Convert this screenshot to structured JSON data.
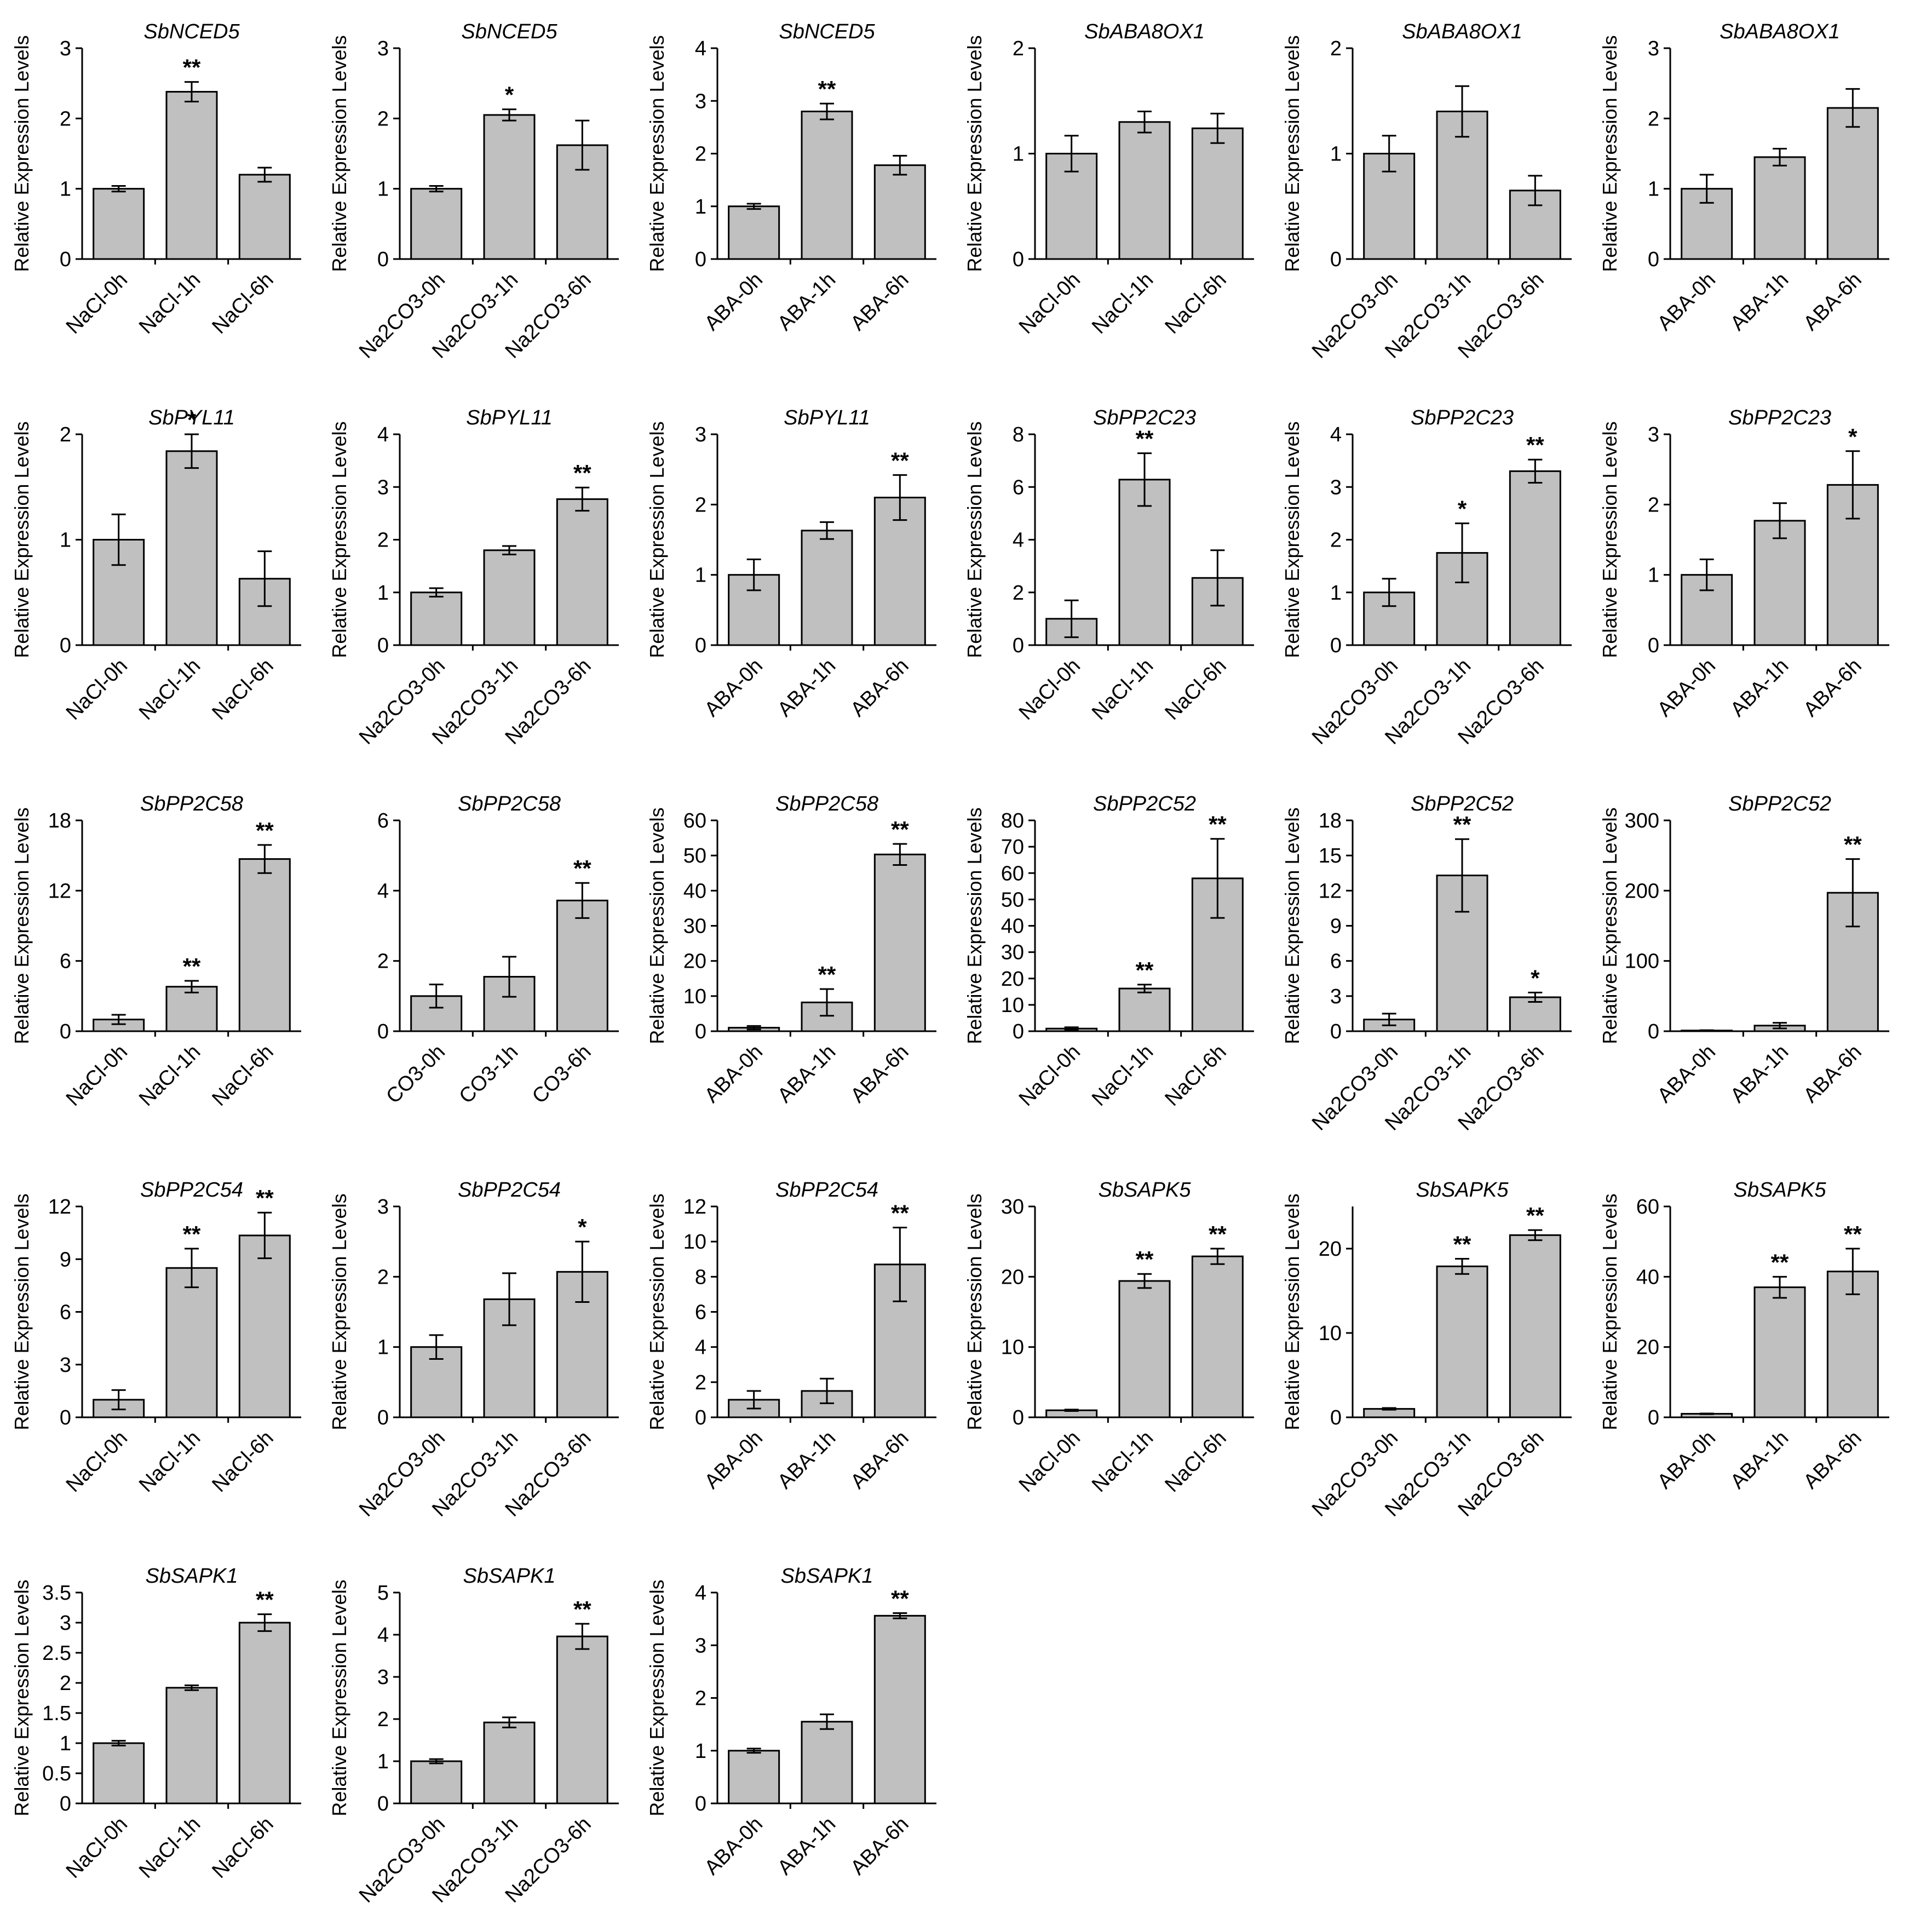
{
  "figure": {
    "ylabel": "Relative Expression Levels"
  },
  "chart_data": [
    {
      "type": "bar",
      "title": "SbNCED5",
      "ylabel": "Relative Expression Levels",
      "categories": [
        "NaCl-0h",
        "NaCl-1h",
        "NaCl-6h"
      ],
      "values": [
        1.0,
        2.38,
        1.2
      ],
      "errors": [
        0.04,
        0.14,
        0.1
      ],
      "significance": [
        "",
        "**",
        ""
      ],
      "ylim": [
        0,
        3
      ],
      "yticks": [
        "0",
        "1",
        "2",
        "3"
      ]
    },
    {
      "type": "bar",
      "title": "SbNCED5",
      "ylabel": "Relative Expression Levels",
      "categories": [
        "Na2CO3-0h",
        "Na2CO3-1h",
        "Na2CO3-6h"
      ],
      "values": [
        1.0,
        2.05,
        1.62
      ],
      "errors": [
        0.04,
        0.08,
        0.35
      ],
      "significance": [
        "",
        "*",
        ""
      ],
      "ylim": [
        0,
        3
      ],
      "yticks": [
        "0",
        "1",
        "2",
        "3"
      ]
    },
    {
      "type": "bar",
      "title": "SbNCED5",
      "ylabel": "Relative Expression Levels",
      "categories": [
        "ABA-0h",
        "ABA-1h",
        "ABA-6h"
      ],
      "values": [
        1.0,
        2.8,
        1.78
      ],
      "errors": [
        0.05,
        0.15,
        0.18
      ],
      "significance": [
        "",
        "**",
        ""
      ],
      "ylim": [
        0,
        4
      ],
      "yticks": [
        "0",
        "1",
        "2",
        "3",
        "4"
      ]
    },
    {
      "type": "bar",
      "title": "SbABA8OX1",
      "ylabel": "Relative Expression Levels",
      "categories": [
        "NaCl-0h",
        "NaCl-1h",
        "NaCl-6h"
      ],
      "values": [
        1.0,
        1.3,
        1.24
      ],
      "errors": [
        0.17,
        0.1,
        0.14
      ],
      "significance": [
        "",
        "",
        ""
      ],
      "ylim": [
        0,
        2
      ],
      "yticks": [
        "0",
        "1",
        "2"
      ]
    },
    {
      "type": "bar",
      "title": "SbABA8OX1",
      "ylabel": "Relative Expression Levels",
      "categories": [
        "Na2CO3-0h",
        "Na2CO3-1h",
        "Na2CO3-6h"
      ],
      "values": [
        1.0,
        1.4,
        0.65
      ],
      "errors": [
        0.17,
        0.24,
        0.14
      ],
      "significance": [
        "",
        "",
        ""
      ],
      "ylim": [
        0,
        2
      ],
      "yticks": [
        "0",
        "1",
        "2"
      ]
    },
    {
      "type": "bar",
      "title": "SbABA8OX1",
      "ylabel": "Relative Expression Levels",
      "categories": [
        "ABA-0h",
        "ABA-1h",
        "ABA-6h"
      ],
      "values": [
        1.0,
        1.45,
        2.15
      ],
      "errors": [
        0.2,
        0.12,
        0.27
      ],
      "significance": [
        "",
        "",
        ""
      ],
      "ylim": [
        0,
        3
      ],
      "yticks": [
        "0",
        "1",
        "2",
        "3"
      ]
    },
    {
      "type": "bar",
      "title": "SbPYL11",
      "ylabel": "Relative Expression Levels",
      "categories": [
        "NaCl-0h",
        "NaCl-1h",
        "NaCl-6h"
      ],
      "values": [
        1.0,
        1.84,
        0.63
      ],
      "errors": [
        0.24,
        0.16,
        0.26
      ],
      "significance": [
        "",
        "*",
        ""
      ],
      "ylim": [
        0,
        2
      ],
      "yticks": [
        "0",
        "1",
        "2"
      ]
    },
    {
      "type": "bar",
      "title": "SbPYL11",
      "ylabel": "Relative Expression Levels",
      "categories": [
        "Na2CO3-0h",
        "Na2CO3-1h",
        "Na2CO3-6h"
      ],
      "values": [
        1.0,
        1.8,
        2.77
      ],
      "errors": [
        0.08,
        0.08,
        0.22
      ],
      "significance": [
        "",
        "",
        "**"
      ],
      "ylim": [
        0,
        4
      ],
      "yticks": [
        "0",
        "1",
        "2",
        "3",
        "4"
      ]
    },
    {
      "type": "bar",
      "title": "SbPYL11",
      "ylabel": "Relative Expression Levels",
      "categories": [
        "ABA-0h",
        "ABA-1h",
        "ABA-6h"
      ],
      "values": [
        1.0,
        1.63,
        2.1
      ],
      "errors": [
        0.22,
        0.12,
        0.32
      ],
      "significance": [
        "",
        "",
        "**"
      ],
      "ylim": [
        0,
        3
      ],
      "yticks": [
        "0",
        "1",
        "2",
        "3"
      ]
    },
    {
      "type": "bar",
      "title": "SbPP2C23",
      "ylabel": "Relative Expression Levels",
      "categories": [
        "NaCl-0h",
        "NaCl-1h",
        "NaCl-6h"
      ],
      "values": [
        1.0,
        6.28,
        2.55
      ],
      "errors": [
        0.7,
        1.0,
        1.05
      ],
      "significance": [
        "",
        "**",
        ""
      ],
      "ylim": [
        0,
        8
      ],
      "yticks": [
        "0",
        "2",
        "4",
        "6",
        "8"
      ]
    },
    {
      "type": "bar",
      "title": "SbPP2C23",
      "ylabel": "Relative Expression Levels",
      "categories": [
        "Na2CO3-0h",
        "Na2CO3-1h",
        "Na2CO3-6h"
      ],
      "values": [
        1.0,
        1.75,
        3.3
      ],
      "errors": [
        0.26,
        0.56,
        0.22
      ],
      "significance": [
        "",
        "*",
        "**"
      ],
      "ylim": [
        0,
        4
      ],
      "yticks": [
        "0",
        "1",
        "2",
        "3",
        "4"
      ]
    },
    {
      "type": "bar",
      "title": "SbPP2C23",
      "ylabel": "Relative Expression Levels",
      "categories": [
        "ABA-0h",
        "ABA-1h",
        "ABA-6h"
      ],
      "values": [
        1.0,
        1.77,
        2.28
      ],
      "errors": [
        0.22,
        0.25,
        0.48
      ],
      "significance": [
        "",
        "",
        "*"
      ],
      "ylim": [
        0,
        3
      ],
      "yticks": [
        "0",
        "1",
        "2",
        "3"
      ]
    },
    {
      "type": "bar",
      "title": "SbPP2C58",
      "ylabel": "Relative Expression Levels",
      "categories": [
        "NaCl-0h",
        "NaCl-1h",
        "NaCl-6h"
      ],
      "values": [
        1.0,
        3.8,
        14.7
      ],
      "errors": [
        0.4,
        0.5,
        1.2
      ],
      "significance": [
        "",
        "**",
        "**"
      ],
      "ylim": [
        0,
        18
      ],
      "yticks": [
        "0",
        "6",
        "12",
        "18"
      ]
    },
    {
      "type": "bar",
      "title": "SbPP2C58",
      "ylabel": "",
      "categories": [
        "CO3-0h",
        "CO3-1h",
        "CO3-6h"
      ],
      "values": [
        1.0,
        1.55,
        3.72
      ],
      "errors": [
        0.33,
        0.57,
        0.5
      ],
      "significance": [
        "",
        "",
        "**"
      ],
      "ylim": [
        0,
        6
      ],
      "yticks": [
        "0",
        "2",
        "4",
        "6"
      ]
    },
    {
      "type": "bar",
      "title": "SbPP2C58",
      "ylabel": "Relative Expression Levels",
      "categories": [
        "ABA-0h",
        "ABA-1h",
        "ABA-6h"
      ],
      "values": [
        1.0,
        8.2,
        50.3
      ],
      "errors": [
        0.5,
        3.8,
        3.0
      ],
      "significance": [
        "",
        "**",
        "**"
      ],
      "ylim": [
        0,
        60
      ],
      "yticks": [
        "0",
        "10",
        "20",
        "30",
        "40",
        "50",
        "60"
      ]
    },
    {
      "type": "bar",
      "title": "SbPP2C52",
      "ylabel": "Relative Expression Levels",
      "categories": [
        "NaCl-0h",
        "NaCl-1h",
        "NaCl-6h"
      ],
      "values": [
        1.0,
        16.2,
        58.0
      ],
      "errors": [
        0.5,
        1.5,
        15.0
      ],
      "significance": [
        "",
        "**",
        "**"
      ],
      "ylim": [
        0,
        80
      ],
      "yticks": [
        "0",
        "10",
        "20",
        "30",
        "40",
        "50",
        "60",
        "70",
        "80"
      ]
    },
    {
      "type": "bar",
      "title": "SbPP2C52",
      "ylabel": "Relative Expression Levels",
      "categories": [
        "Na2CO3-0h",
        "Na2CO3-1h",
        "Na2CO3-6h"
      ],
      "values": [
        1.0,
        13.3,
        2.9
      ],
      "errors": [
        0.5,
        3.1,
        0.4
      ],
      "significance": [
        "",
        "**",
        "*"
      ],
      "ylim": [
        0,
        18
      ],
      "yticks": [
        "0",
        "3",
        "6",
        "9",
        "12",
        "15",
        "18"
      ]
    },
    {
      "type": "bar",
      "title": "SbPP2C52",
      "ylabel": "Relative Expression Levels",
      "categories": [
        "ABA-0h",
        "ABA-1h",
        "ABA-6h"
      ],
      "values": [
        1.0,
        8.0,
        197.0
      ],
      "errors": [
        0.5,
        4.0,
        48.0
      ],
      "significance": [
        "",
        "",
        "**"
      ],
      "ylim": [
        0,
        300
      ],
      "yticks": [
        "0",
        "100",
        "200",
        "300"
      ]
    },
    {
      "type": "bar",
      "title": "SbPP2C54",
      "ylabel": "Relative Expression Levels",
      "categories": [
        "NaCl-0h",
        "NaCl-1h",
        "NaCl-6h"
      ],
      "values": [
        1.0,
        8.5,
        10.35
      ],
      "errors": [
        0.55,
        1.1,
        1.3
      ],
      "significance": [
        "",
        "**",
        "**"
      ],
      "ylim": [
        0,
        12
      ],
      "yticks": [
        "0",
        "3",
        "6",
        "9",
        "12"
      ]
    },
    {
      "type": "bar",
      "title": "SbPP2C54",
      "ylabel": "Relative Expression Levels",
      "categories": [
        "Na2CO3-0h",
        "Na2CO3-1h",
        "Na2CO3-6h"
      ],
      "values": [
        1.0,
        1.68,
        2.07
      ],
      "errors": [
        0.17,
        0.37,
        0.43
      ],
      "significance": [
        "",
        "",
        "*"
      ],
      "ylim": [
        0,
        3
      ],
      "yticks": [
        "0",
        "1",
        "2",
        "3"
      ]
    },
    {
      "type": "bar",
      "title": "SbPP2C54",
      "ylabel": "Relative Expression Levels",
      "categories": [
        "ABA-0h",
        "ABA-1h",
        "ABA-6h"
      ],
      "values": [
        1.0,
        1.5,
        8.7
      ],
      "errors": [
        0.5,
        0.7,
        2.1
      ],
      "significance": [
        "",
        "",
        "**"
      ],
      "ylim": [
        0,
        12
      ],
      "yticks": [
        "0",
        "2",
        "4",
        "6",
        "8",
        "10",
        "12"
      ]
    },
    {
      "type": "bar",
      "title": "SbSAPK5",
      "ylabel": "Relative Expression Levels",
      "categories": [
        "NaCl-0h",
        "NaCl-1h",
        "NaCl-6h"
      ],
      "values": [
        1.0,
        19.4,
        22.9
      ],
      "errors": [
        0.1,
        1.0,
        1.1
      ],
      "significance": [
        "",
        "**",
        "**"
      ],
      "ylim": [
        0,
        30
      ],
      "yticks": [
        "0",
        "10",
        "20",
        "30"
      ]
    },
    {
      "type": "bar",
      "title": "SbSAPK5",
      "ylabel": "Relative Expression Levels",
      "categories": [
        "Na2CO3-0h",
        "Na2CO3-1h",
        "Na2CO3-6h"
      ],
      "values": [
        1.0,
        17.9,
        21.6
      ],
      "errors": [
        0.1,
        0.9,
        0.6
      ],
      "significance": [
        "",
        "**",
        "**"
      ],
      "ylim": [
        0,
        25
      ],
      "yticks": [
        "0",
        "10",
        "20"
      ]
    },
    {
      "type": "bar",
      "title": "SbSAPK5",
      "ylabel": "Relative Expression Levels",
      "categories": [
        "ABA-0h",
        "ABA-1h",
        "ABA-6h"
      ],
      "values": [
        1.0,
        37.0,
        41.5
      ],
      "errors": [
        0.1,
        3.0,
        6.5
      ],
      "significance": [
        "",
        "**",
        "**"
      ],
      "ylim": [
        0,
        60
      ],
      "yticks": [
        "0",
        "20",
        "40",
        "60"
      ]
    },
    {
      "type": "bar",
      "title": "SbSAPK1",
      "ylabel": "Relative Expression Levels",
      "categories": [
        "NaCl-0h",
        "NaCl-1h",
        "NaCl-6h"
      ],
      "values": [
        1.0,
        1.92,
        3.0
      ],
      "errors": [
        0.04,
        0.04,
        0.14
      ],
      "significance": [
        "",
        "",
        "**"
      ],
      "ylim": [
        0,
        3.5
      ],
      "yticks": [
        "0",
        "0.5",
        "1",
        "1.5",
        "2",
        "2.5",
        "3",
        "3.5"
      ]
    },
    {
      "type": "bar",
      "title": "SbSAPK1",
      "ylabel": "Relative Expression Levels",
      "categories": [
        "Na2CO3-0h",
        "Na2CO3-1h",
        "Na2CO3-6h"
      ],
      "values": [
        1.0,
        1.92,
        3.96
      ],
      "errors": [
        0.05,
        0.12,
        0.3
      ],
      "significance": [
        "",
        "",
        "**"
      ],
      "ylim": [
        0,
        5
      ],
      "yticks": [
        "0",
        "1",
        "2",
        "3",
        "4",
        "5"
      ]
    },
    {
      "type": "bar",
      "title": "SbSAPK1",
      "ylabel": "Relative Expression Levels",
      "categories": [
        "ABA-0h",
        "ABA-1h",
        "ABA-6h"
      ],
      "values": [
        1.0,
        1.55,
        3.56
      ],
      "errors": [
        0.04,
        0.14,
        0.05
      ],
      "significance": [
        "",
        "",
        "**"
      ],
      "ylim": [
        0,
        4
      ],
      "yticks": [
        "0",
        "1",
        "2",
        "3",
        "4"
      ]
    }
  ]
}
